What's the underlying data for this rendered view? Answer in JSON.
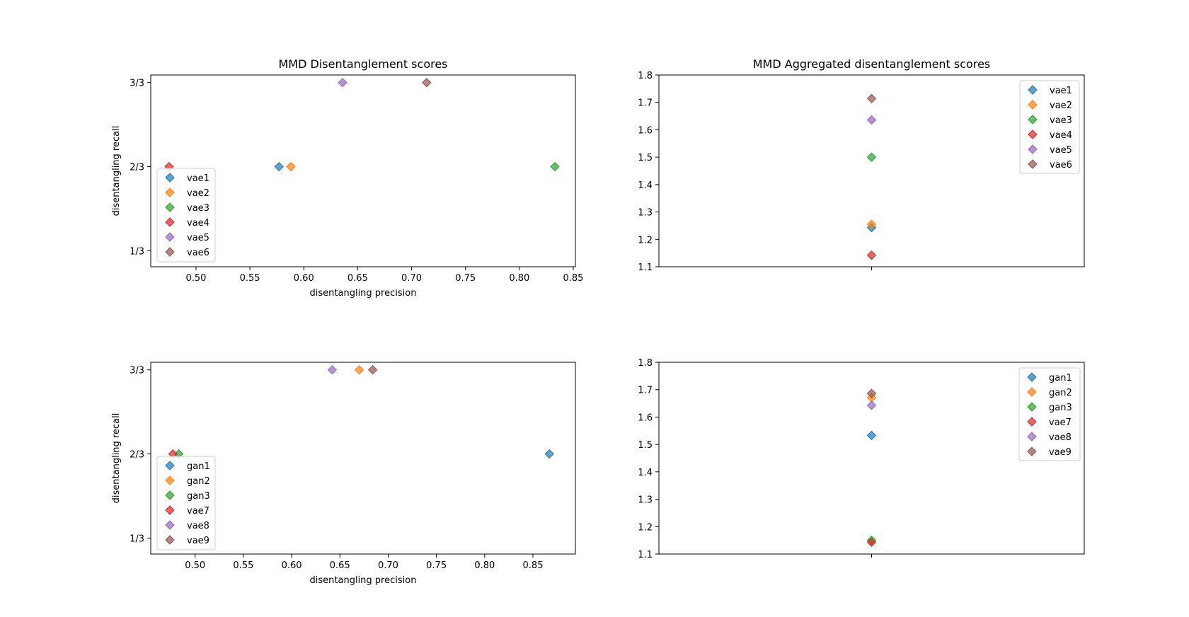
{
  "chart_data": [
    {
      "type": "scatter",
      "title": "MMD Disentanglement scores",
      "xlabel": "disentangling precision",
      "ylabel": "disentangling recall",
      "xlim": [
        0.458,
        0.852
      ],
      "ylim": [
        0.27,
        1.03
      ],
      "xticks": [
        0.5,
        0.55,
        0.6,
        0.65,
        0.7,
        0.75,
        0.8,
        0.85
      ],
      "xtick_labels": [
        "0.50",
        "0.55",
        "0.60",
        "0.65",
        "0.70",
        "0.75",
        "0.80",
        "0.85"
      ],
      "yticks": [
        0.3333,
        0.6667,
        1.0
      ],
      "ytick_labels": [
        "1/3",
        "2/3",
        "3/3"
      ],
      "legend_position": "lower-left",
      "grid": false,
      "series": [
        {
          "name": "vae1",
          "color": "#1f77b4",
          "x": 0.577,
          "y": 0.6667
        },
        {
          "name": "vae2",
          "color": "#ff7f0e",
          "x": 0.588,
          "y": 0.6667
        },
        {
          "name": "vae3",
          "color": "#2ca02c",
          "x": 0.833,
          "y": 0.6667
        },
        {
          "name": "vae4",
          "color": "#d62728",
          "x": 0.475,
          "y": 0.6667
        },
        {
          "name": "vae5",
          "color": "#9467bd",
          "x": 0.636,
          "y": 1.0
        },
        {
          "name": "vae6",
          "color": "#8c564b",
          "x": 0.714,
          "y": 1.0
        }
      ]
    },
    {
      "type": "scatter",
      "title": "MMD Aggregated disentanglement scores",
      "xlabel": "",
      "ylabel": "",
      "xlim": [
        -1,
        1
      ],
      "ylim": [
        1.1,
        1.8
      ],
      "yticks": [
        1.1,
        1.2,
        1.3,
        1.4,
        1.5,
        1.6,
        1.7,
        1.8
      ],
      "ytick_labels": [
        "1.1",
        "1.2",
        "1.3",
        "1.4",
        "1.5",
        "1.6",
        "1.7",
        "1.8"
      ],
      "xticks": [
        0
      ],
      "xtick_labels": [
        ""
      ],
      "legend_position": "upper-right",
      "grid": false,
      "series": [
        {
          "name": "vae1",
          "color": "#1f77b4",
          "x": 0,
          "y": 1.243
        },
        {
          "name": "vae2",
          "color": "#ff7f0e",
          "x": 0,
          "y": 1.255
        },
        {
          "name": "vae3",
          "color": "#2ca02c",
          "x": 0,
          "y": 1.5
        },
        {
          "name": "vae4",
          "color": "#d62728",
          "x": 0,
          "y": 1.142
        },
        {
          "name": "vae5",
          "color": "#9467bd",
          "x": 0,
          "y": 1.636
        },
        {
          "name": "vae6",
          "color": "#8c564b",
          "x": 0,
          "y": 1.714
        }
      ]
    },
    {
      "type": "scatter",
      "title": "",
      "xlabel": "disentangling precision",
      "ylabel": "disentangling recall",
      "xlim": [
        0.454,
        0.894
      ],
      "ylim": [
        0.27,
        1.03
      ],
      "xticks": [
        0.5,
        0.55,
        0.6,
        0.65,
        0.7,
        0.75,
        0.8,
        0.85
      ],
      "xtick_labels": [
        "0.50",
        "0.55",
        "0.60",
        "0.65",
        "0.70",
        "0.75",
        "0.80",
        "0.85"
      ],
      "yticks": [
        0.3333,
        0.6667,
        1.0
      ],
      "ytick_labels": [
        "1/3",
        "2/3",
        "3/3"
      ],
      "legend_position": "lower-left",
      "grid": false,
      "series": [
        {
          "name": "gan1",
          "color": "#1f77b4",
          "x": 0.867,
          "y": 0.6667
        },
        {
          "name": "gan2",
          "color": "#ff7f0e",
          "x": 0.67,
          "y": 1.0
        },
        {
          "name": "gan3",
          "color": "#2ca02c",
          "x": 0.483,
          "y": 0.6667
        },
        {
          "name": "vae7",
          "color": "#d62728",
          "x": 0.477,
          "y": 0.6667
        },
        {
          "name": "vae8",
          "color": "#9467bd",
          "x": 0.642,
          "y": 1.0
        },
        {
          "name": "vae9",
          "color": "#8c564b",
          "x": 0.684,
          "y": 1.0
        }
      ]
    },
    {
      "type": "scatter",
      "title": "",
      "xlabel": "",
      "ylabel": "",
      "xlim": [
        -1,
        1
      ],
      "ylim": [
        1.1,
        1.8
      ],
      "yticks": [
        1.1,
        1.2,
        1.3,
        1.4,
        1.5,
        1.6,
        1.7,
        1.8
      ],
      "ytick_labels": [
        "1.1",
        "1.2",
        "1.3",
        "1.4",
        "1.5",
        "1.6",
        "1.7",
        "1.8"
      ],
      "xticks": [
        0
      ],
      "xtick_labels": [
        ""
      ],
      "legend_position": "upper-right",
      "grid": false,
      "series": [
        {
          "name": "gan1",
          "color": "#1f77b4",
          "x": 0,
          "y": 1.533
        },
        {
          "name": "gan2",
          "color": "#ff7f0e",
          "x": 0,
          "y": 1.671
        },
        {
          "name": "gan3",
          "color": "#2ca02c",
          "x": 0,
          "y": 1.15
        },
        {
          "name": "vae7",
          "color": "#d62728",
          "x": 0,
          "y": 1.143
        },
        {
          "name": "vae8",
          "color": "#9467bd",
          "x": 0,
          "y": 1.643
        },
        {
          "name": "vae9",
          "color": "#8c564b",
          "x": 0,
          "y": 1.686
        }
      ]
    }
  ]
}
